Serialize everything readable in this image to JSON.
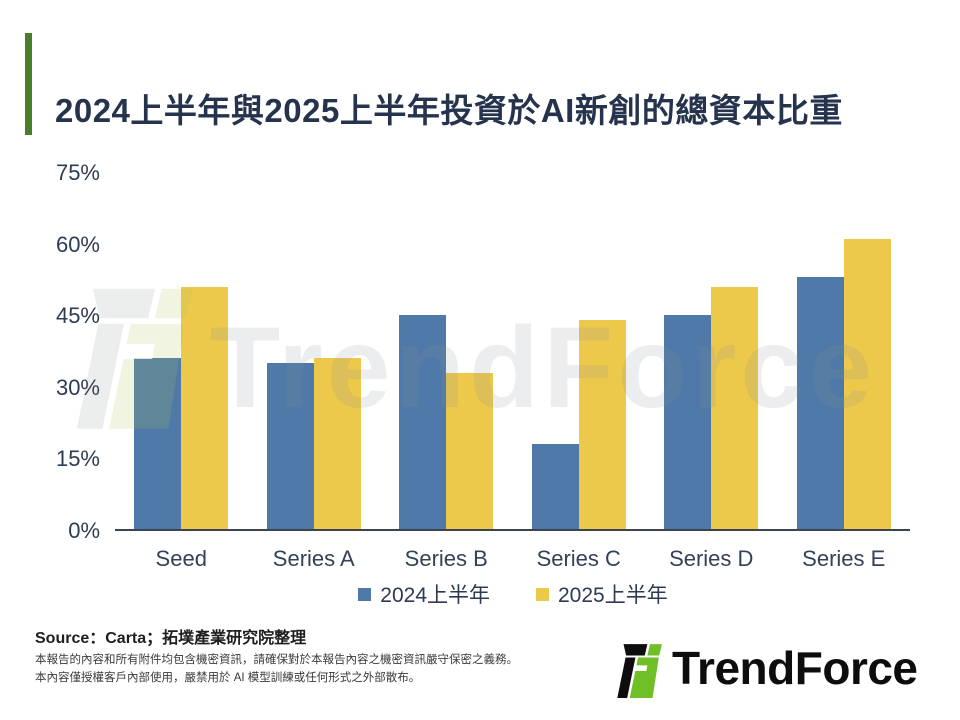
{
  "title": "2024上半年與2025上半年投資於AI新創的總資本比重",
  "colors": {
    "accent_green": "#4a7e2c",
    "title_navy": "#26334d",
    "bar_blue": "#4e79a8",
    "bar_yellow": "#ecc84b",
    "logo_green": "#6fbf26",
    "logo_black": "#0d0d0d"
  },
  "chart_data": {
    "type": "bar",
    "title": "2024上半年與2025上半年投資於AI新創的總資本比重",
    "categories": [
      "Seed",
      "Series A",
      "Series B",
      "Series C",
      "Series D",
      "Series E"
    ],
    "series": [
      {
        "name": "2024上半年",
        "color": "#4e79a8",
        "values": [
          36,
          35,
          45,
          18,
          45,
          53
        ]
      },
      {
        "name": "2025上半年",
        "color": "#ecc84b",
        "values": [
          51,
          36,
          33,
          44,
          51,
          61
        ]
      }
    ],
    "xlabel": "",
    "ylabel": "",
    "ylim": [
      0,
      75
    ],
    "yticks": [
      0,
      15,
      30,
      45,
      60,
      75
    ],
    "ytick_suffix": "%",
    "grid": false,
    "legend_position": "bottom"
  },
  "watermark": {
    "text": "TrendForce"
  },
  "source": "Source：Carta；拓墣產業研究院整理",
  "footer": {
    "line1": "本報告的內容和所有附件均包含機密資訊，請確保對於本報告內容之機密資訊嚴守保密之義務。",
    "line2": "本內容僅授權客戶內部使用，嚴禁用於 AI 模型訓練或任何形式之外部散布。"
  },
  "logo": {
    "text": "TrendForce"
  }
}
